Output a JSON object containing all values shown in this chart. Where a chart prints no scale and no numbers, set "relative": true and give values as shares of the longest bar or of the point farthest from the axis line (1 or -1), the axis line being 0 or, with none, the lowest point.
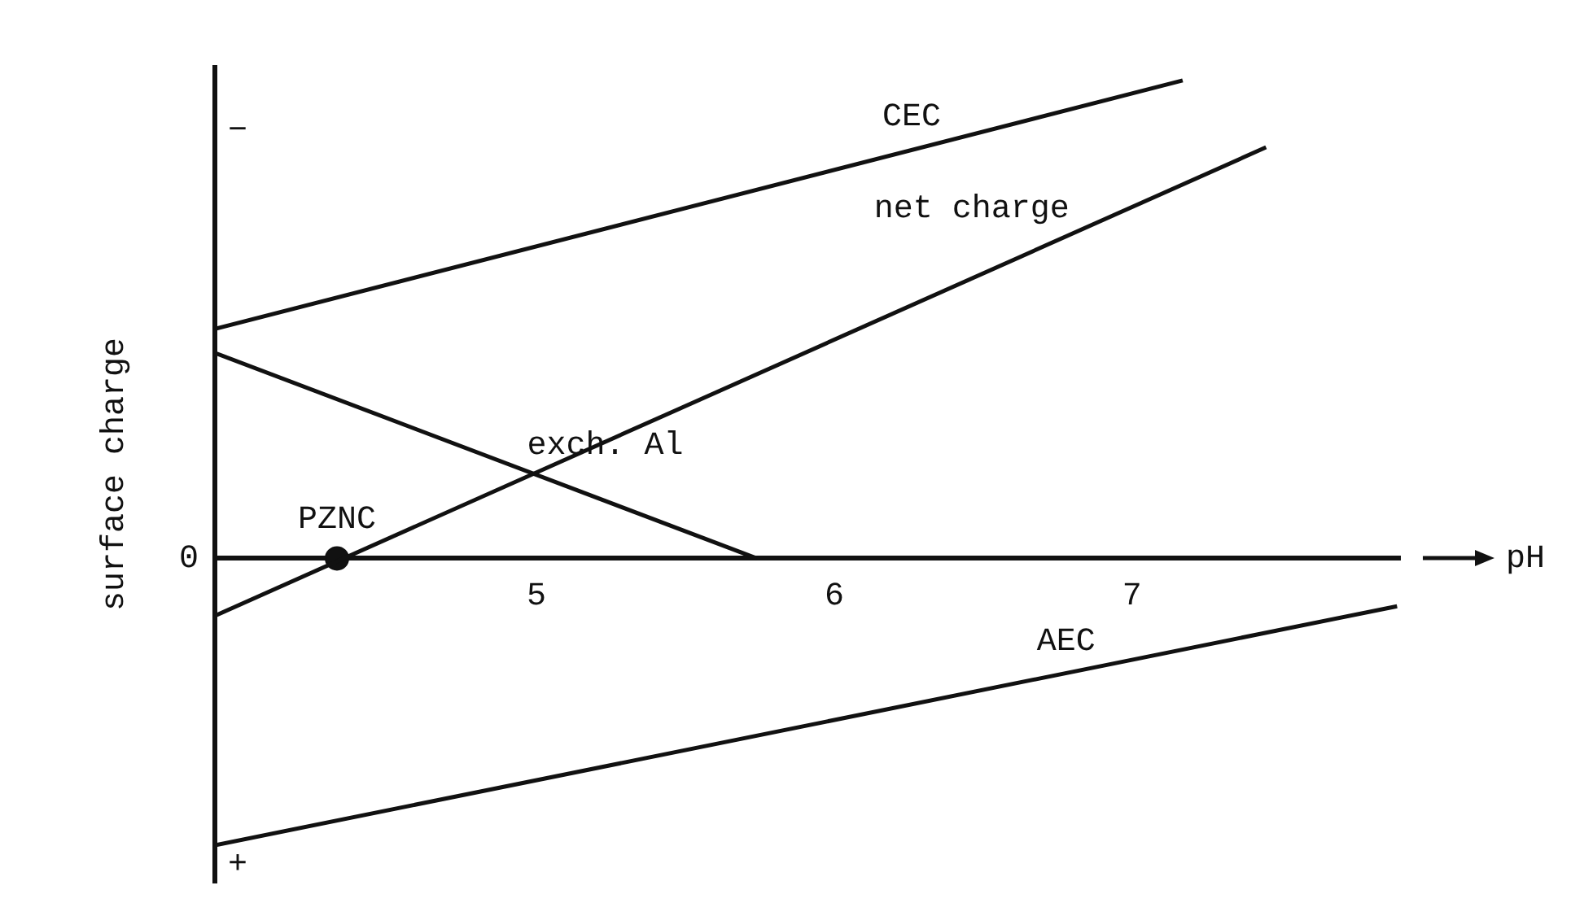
{
  "chart_data": {
    "type": "line",
    "relative": true,
    "xlabel": "pH",
    "ylabel": "surface charge",
    "xlim": [
      3.92,
      7.9
    ],
    "xticks": [
      5,
      6,
      7
    ],
    "grid": false,
    "legend": false,
    "marker": "none",
    "line_style": "solid",
    "series": [
      {
        "name": "CEC",
        "color": "#111111",
        "x": [
          3.92,
          7.17
        ],
        "values": [
          0.48,
          1
        ]
      },
      {
        "name": "net charge",
        "color": "#111111",
        "x": [
          3.92,
          7.45
        ],
        "values": [
          -0.12,
          0.86
        ]
      },
      {
        "name": "exch. Al",
        "color": "#111111",
        "x": [
          3.92,
          5.74
        ],
        "values": [
          0.43,
          0
        ]
      },
      {
        "name": "AEC",
        "color": "#111111",
        "x": [
          3.92,
          7.89
        ],
        "values": [
          -0.6,
          -0.1
        ]
      },
      {
        "type": "scatter",
        "color": "#111111",
        "marker": "circle",
        "x": [
          4.33
        ],
        "values": [
          0
        ]
      }
    ],
    "ref_lines": [
      {
        "axis": "x",
        "value": 3.92,
        "color": "#111111"
      }
    ],
    "annotations": [
      {
        "text": "PZNC",
        "x": 4.33,
        "y": 0
      },
      "0",
      "−",
      "+"
    ]
  }
}
